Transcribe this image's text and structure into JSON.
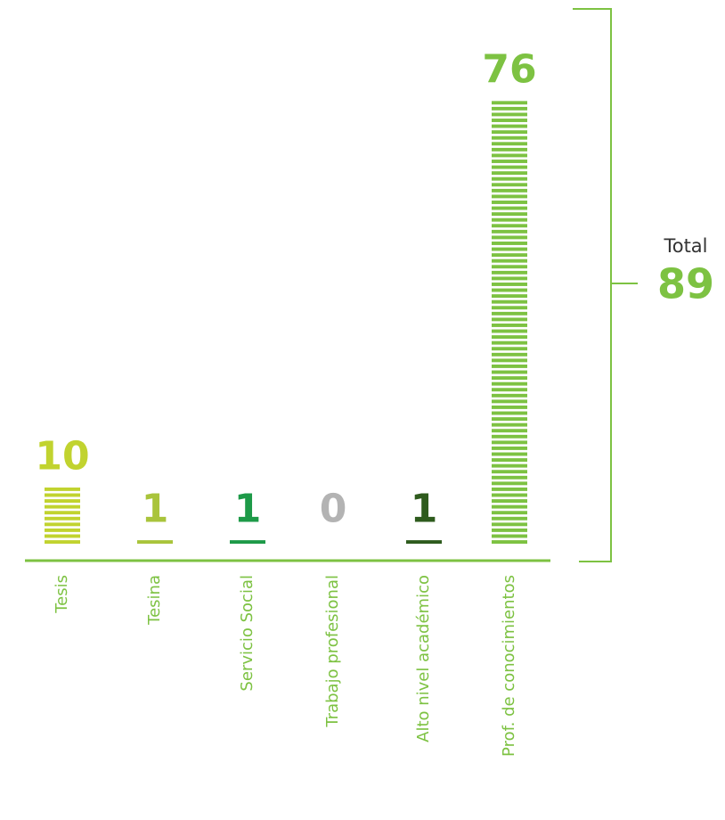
{
  "chart_data": {
    "type": "bar",
    "categories": [
      "Tesis",
      "Tesina",
      "Servicio Social",
      "Trabajo profesional",
      "Alto nivel académico",
      "Prof. de conocimientos"
    ],
    "values": [
      10,
      1,
      1,
      0,
      1,
      76
    ],
    "colors": [
      "#c1d32f",
      "#a9c43b",
      "#1d9a48",
      "#b3b3b3",
      "#2e5b1d",
      "#7dc242"
    ],
    "total_label": "Total",
    "total": 89
  }
}
